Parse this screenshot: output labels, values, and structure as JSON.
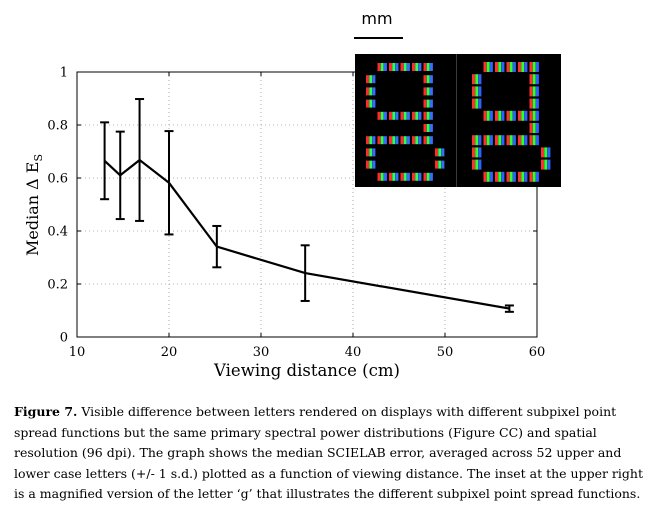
{
  "chart_data": {
    "type": "line",
    "x": [
      13,
      14.7,
      16.8,
      20,
      25.2,
      34.8,
      57
    ],
    "series": [
      {
        "values": [
          0.665,
          0.61,
          0.668,
          0.582,
          0.341,
          0.241,
          0.107
        ],
        "err": [
          0.145,
          0.165,
          0.23,
          0.195,
          0.078,
          0.105,
          0.012
        ]
      }
    ],
    "xlabel": "Viewing distance (cm)",
    "ylabel": "Median Δ E",
    "ylabel_subscript": "S",
    "xlim": [
      10,
      60
    ],
    "ylim": [
      0,
      1
    ],
    "xticks": [
      "10",
      "20",
      "30",
      "40",
      "50",
      "60"
    ],
    "yticks": [
      "0",
      "0.2",
      "0.4",
      "0.6",
      "0.8",
      "1"
    ],
    "grid": "dotted"
  },
  "inset": {
    "scale_label": "mm",
    "description_color_bg": "#000000"
  },
  "caption": {
    "label": "Figure 7.",
    "text": " Visible difference between letters rendered on displays with different subpixel point spread functions but the same primary spectral power distributions (Figure CC) and spatial resolution (96 dpi).  The graph shows the median SCIELAB error, averaged across 52 upper and lower case letters (+/- 1 s.d.) plotted as a function of  viewing distance. The inset at the upper right is a magnified version of the letter ‘g’ that illustrates the different subpixel point spread functions."
  }
}
